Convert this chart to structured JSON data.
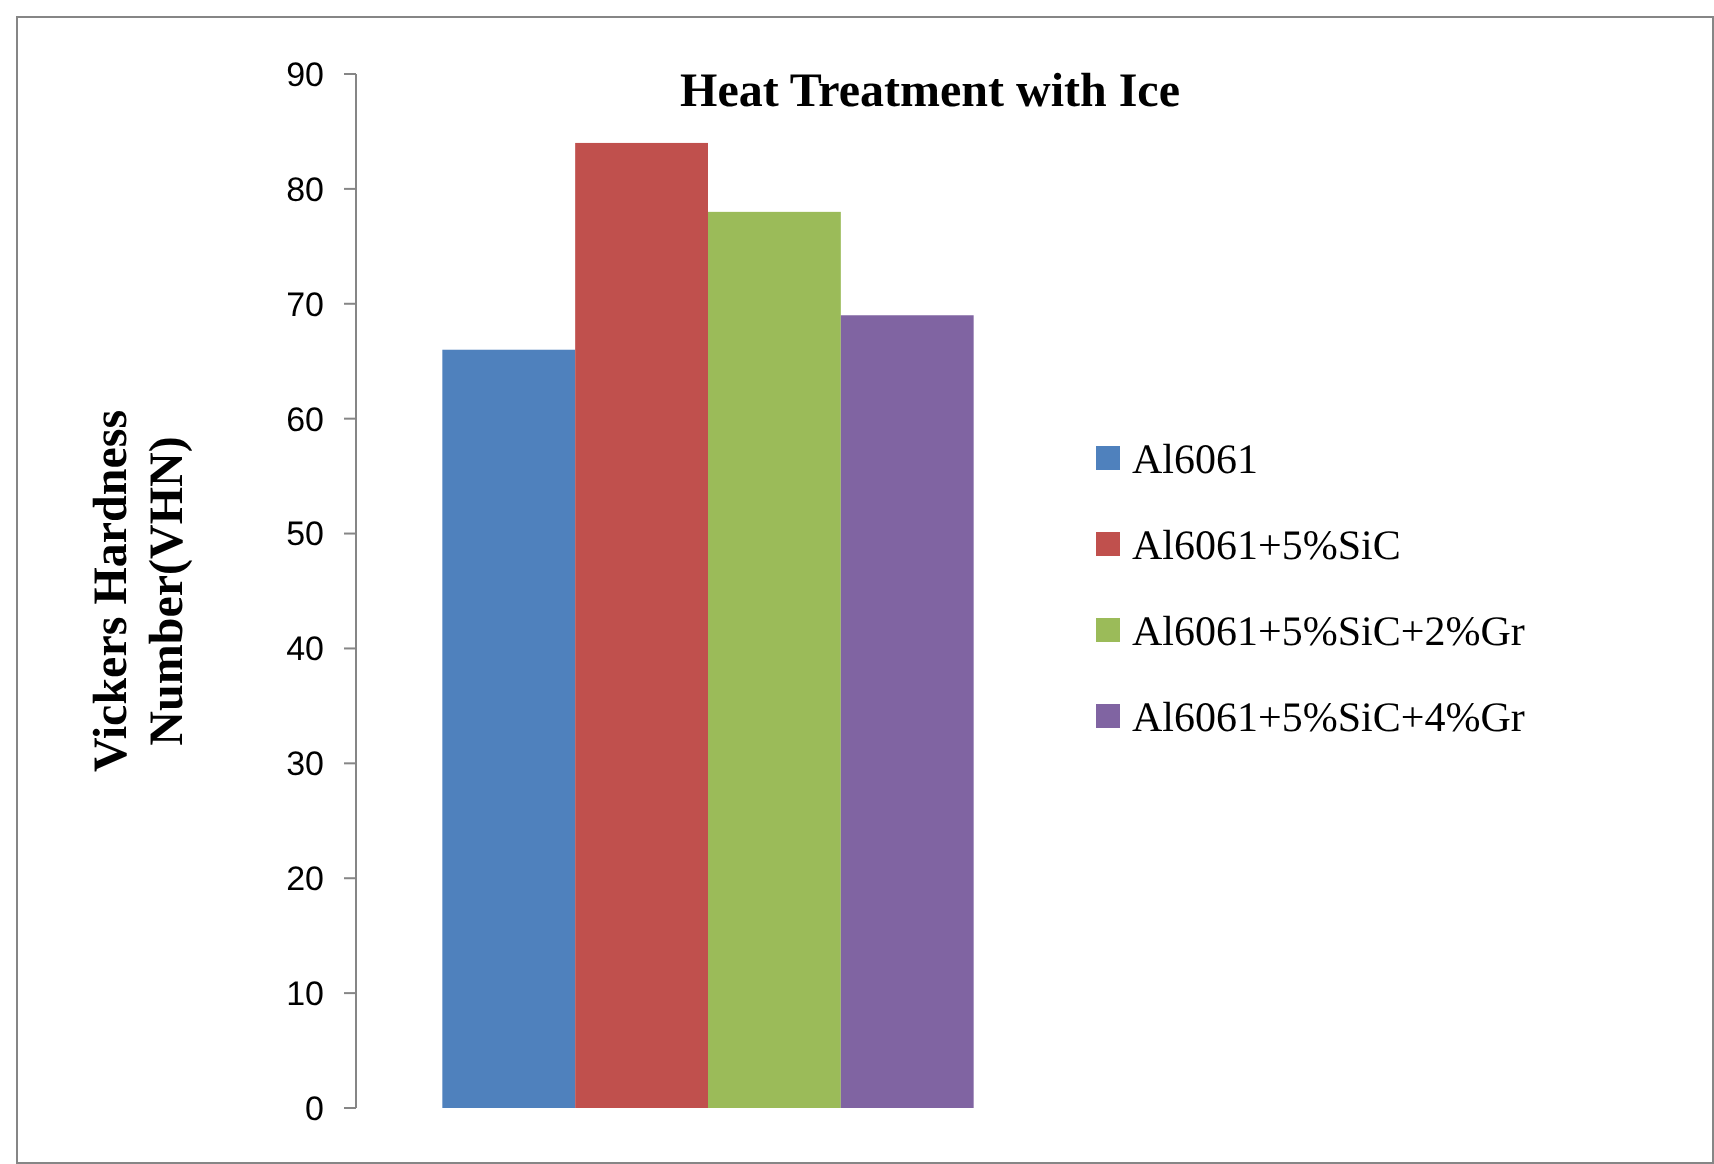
{
  "chart_data": {
    "type": "bar",
    "title": "Heat Treatment with Ice",
    "ylabel": "Vickers Hardness Number(VHN)",
    "categories": [
      null
    ],
    "series": [
      {
        "name": "Al6061",
        "color": "#4f81bd",
        "values": [
          66
        ]
      },
      {
        "name": "Al6061+5%SiC",
        "color": "#c0504d",
        "values": [
          84
        ]
      },
      {
        "name": "Al6061+5%SiC+2%Gr",
        "color": "#9bbb59",
        "values": [
          78
        ]
      },
      {
        "name": "Al6061+5%SiC+4%Gr",
        "color": "#8064a2",
        "values": [
          69
        ]
      }
    ],
    "ylim": [
      0,
      90
    ],
    "yticks": [
      0,
      10,
      20,
      30,
      40,
      50,
      60,
      70,
      80,
      90
    ],
    "grid": false,
    "legend": "right"
  }
}
